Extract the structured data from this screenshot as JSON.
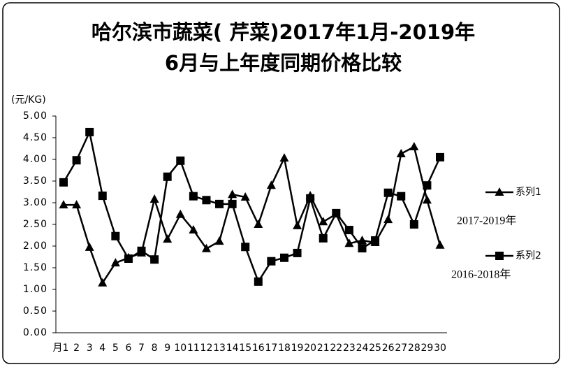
{
  "chart_data": {
    "type": "line",
    "title": "哈尔滨市蔬菜( 芹菜)2017年1月-2019年6月与上年度同期价格比较",
    "y_label": "(元/KG)",
    "categories": [
      "月1",
      "2",
      "3",
      "4",
      "5",
      "6",
      "7",
      "8",
      "9",
      "10",
      "11",
      "12",
      "13",
      "14",
      "15",
      "16",
      "17",
      "18",
      "19",
      "20",
      "21",
      "22",
      "23",
      "24",
      "25",
      "26",
      "27",
      "28",
      "29",
      "30"
    ],
    "series": [
      {
        "name": "系列1",
        "color": "#000000",
        "marker": "triangle",
        "values": [
          2.95,
          2.95,
          1.97,
          1.15,
          1.61,
          1.73,
          1.84,
          3.08,
          2.16,
          2.73,
          2.37,
          1.94,
          2.11,
          3.19,
          3.13,
          2.5,
          3.4,
          4.03,
          2.47,
          3.16,
          2.56,
          2.74,
          2.06,
          2.13,
          2.08,
          2.61,
          4.13,
          4.29,
          3.06,
          2.02
        ]
      },
      {
        "name": "系列2",
        "color": "#000000",
        "marker": "square",
        "values": [
          3.47,
          3.98,
          4.63,
          3.16,
          2.23,
          1.71,
          1.89,
          1.69,
          3.6,
          3.97,
          3.15,
          3.06,
          2.97,
          2.97,
          1.98,
          1.18,
          1.65,
          1.73,
          1.84,
          3.1,
          2.18,
          2.76,
          2.37,
          1.95,
          2.13,
          3.23,
          3.15,
          2.5,
          3.4,
          4.05
        ]
      }
    ],
    "annotations": [
      "2017-2019年",
      "2016-2018年"
    ],
    "ylim": [
      0,
      5
    ],
    "yticks": [
      {
        "value": 0,
        "label": "0.00"
      },
      {
        "value": 0.5,
        "label": "0.50"
      },
      {
        "value": 1,
        "label": "1.00"
      },
      {
        "value": 1.5,
        "label": "1.50"
      },
      {
        "value": 2,
        "label": "2.00"
      },
      {
        "value": 2.5,
        "label": "2.50"
      },
      {
        "value": 3,
        "label": "3.00"
      },
      {
        "value": 3.5,
        "label": "3.50"
      },
      {
        "value": 4,
        "label": "4.00"
      },
      {
        "value": 4.5,
        "label": "4.50"
      },
      {
        "value": 5,
        "label": "5.00"
      }
    ],
    "grid": false,
    "legend": "right"
  }
}
